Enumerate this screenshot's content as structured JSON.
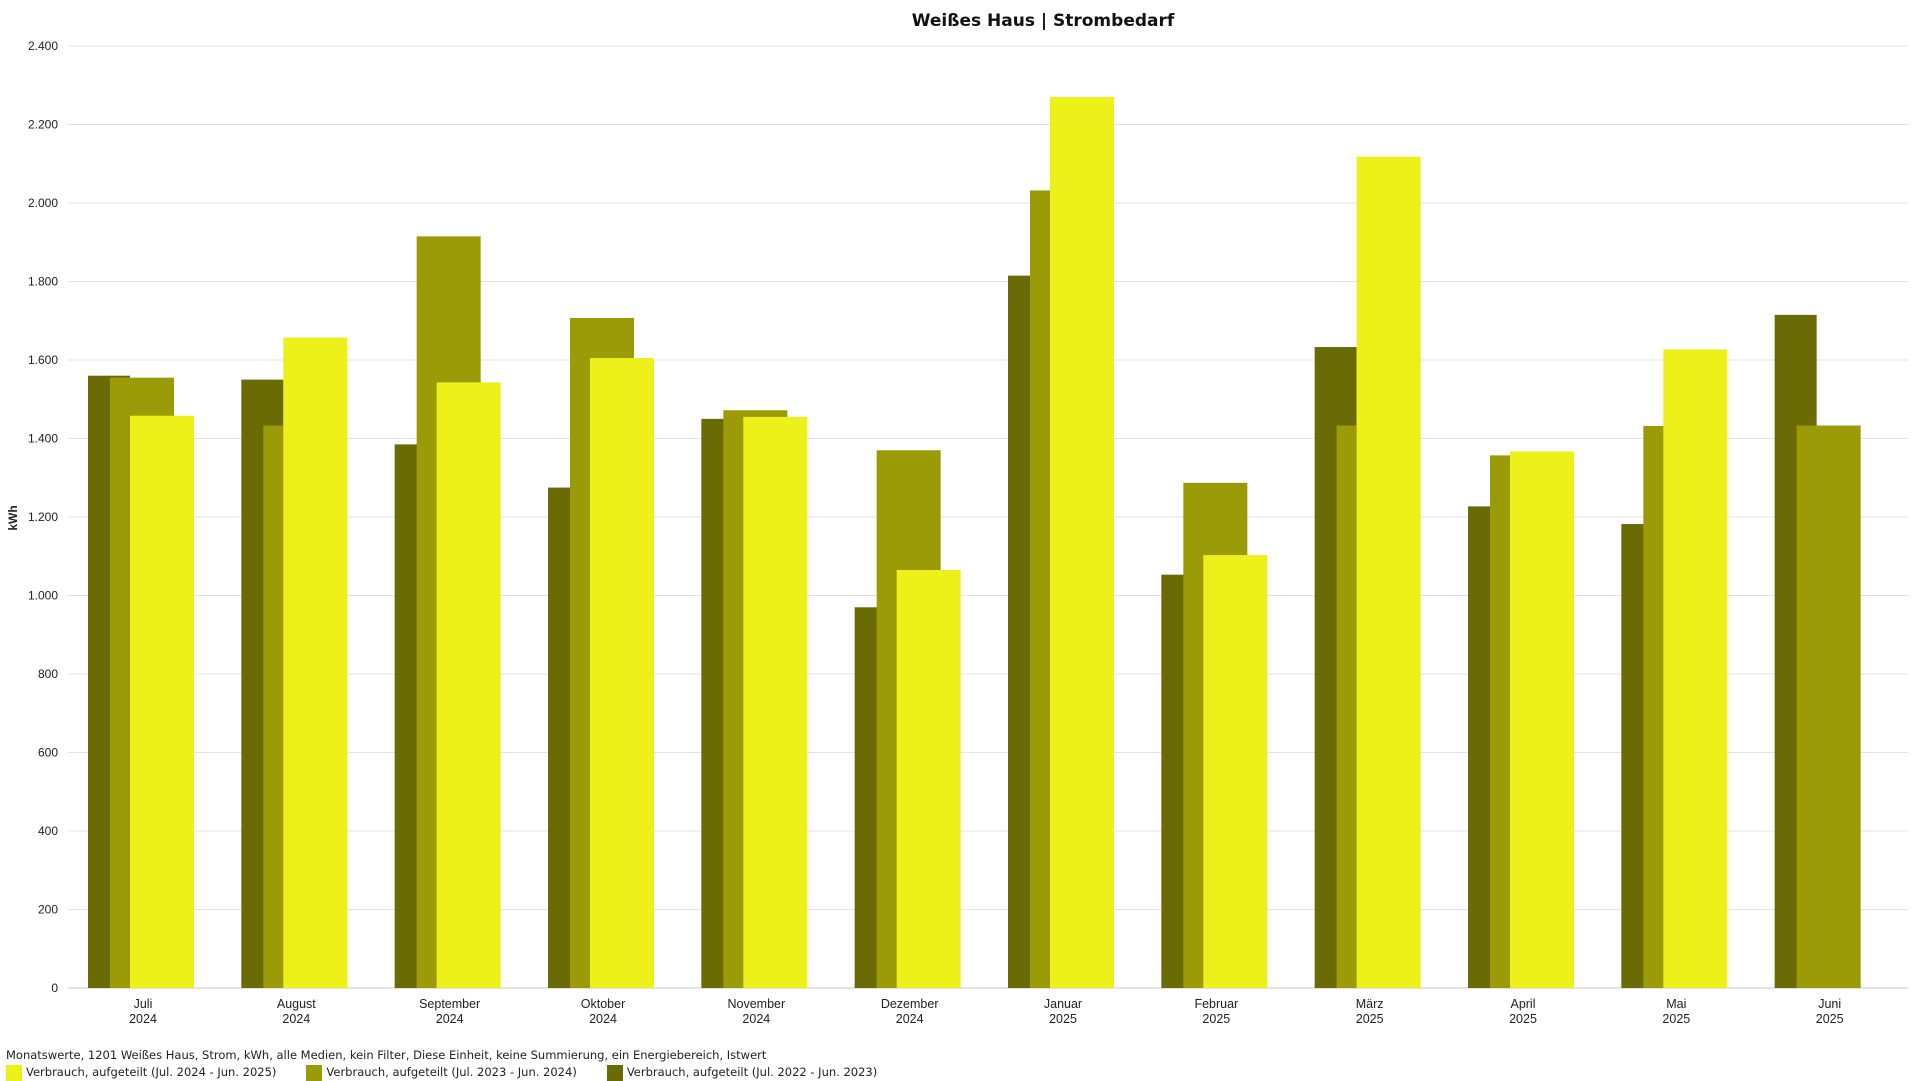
{
  "chart_data": {
    "type": "bar",
    "title": "Weißes Haus | Strombedarf",
    "ylabel": "kWh",
    "xlabel": "",
    "ylim": [
      0,
      2400
    ],
    "yticks": [
      0,
      200,
      400,
      600,
      800,
      1000,
      1200,
      1400,
      1600,
      1800,
      2000,
      2200,
      2400
    ],
    "ytick_labels": [
      "0",
      "200",
      "400",
      "600",
      "800",
      "1.000",
      "1.200",
      "1.400",
      "1.600",
      "1.800",
      "2.000",
      "2.200",
      "2.400"
    ],
    "grid": true,
    "categories": [
      {
        "month": "Juli",
        "year": "2024"
      },
      {
        "month": "August",
        "year": "2024"
      },
      {
        "month": "September",
        "year": "2024"
      },
      {
        "month": "Oktober",
        "year": "2024"
      },
      {
        "month": "November",
        "year": "2024"
      },
      {
        "month": "Dezember",
        "year": "2024"
      },
      {
        "month": "Januar",
        "year": "2025"
      },
      {
        "month": "Februar",
        "year": "2025"
      },
      {
        "month": "März",
        "year": "2025"
      },
      {
        "month": "April",
        "year": "2025"
      },
      {
        "month": "Mai",
        "year": "2025"
      },
      {
        "month": "Juni",
        "year": "2025"
      }
    ],
    "series": [
      {
        "name": "Verbrauch, aufgeteilt (Jul. 2022 - Jun. 2023)",
        "color": "#6b6b05",
        "values": [
          1560,
          1550,
          1385,
          1275,
          1450,
          970,
          1815,
          1053,
          1633,
          1227,
          1182,
          1715
        ]
      },
      {
        "name": "Verbrauch, aufgeteilt (Jul. 2023 - Jun. 2024)",
        "color": "#9b9b08",
        "values": [
          1555,
          1433,
          1915,
          1707,
          1472,
          1370,
          2032,
          1287,
          1433,
          1357,
          1432,
          1433
        ]
      },
      {
        "name": "Verbrauch, aufgeteilt (Jul. 2024 - Jun. 2025)",
        "color": "#eef01a",
        "values": [
          1458,
          1657,
          1543,
          1605,
          1455,
          1065,
          2270,
          1103,
          2118,
          1367,
          1627,
          null
        ]
      }
    ],
    "legend_placement": "bottom-left"
  },
  "footer": {
    "description": "Monatswerte, 1201 Weißes Haus, Strom, kWh, alle Medien, kein Filter, Diese Einheit, keine Summierung, ein Energiebereich, Istwert"
  }
}
